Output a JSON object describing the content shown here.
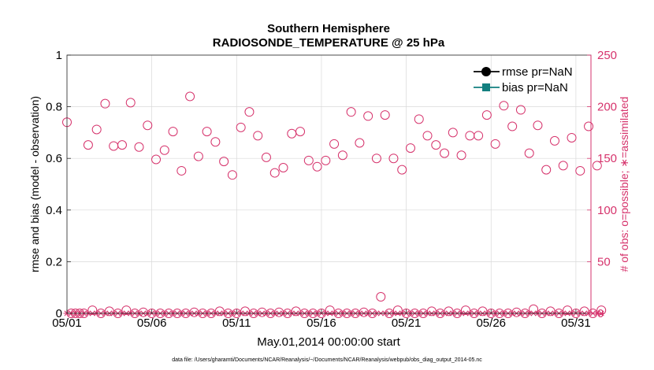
{
  "chart_data": {
    "type": "scatter",
    "title_line1": "Southern Hemisphere",
    "title_line2": "RADIOSONDE_TEMPERATURE @ 25 hPa",
    "xlabel": "May.01,2014 00:00:00 start",
    "ylabel_left": "rmse and bias (model - observation)",
    "ylabel_right": "# of obs: o=possible; ∗=assimilated",
    "footer": "data file: /Users/gharamti/Documents/NCAR/Reanalysis/~/Documents/NCAR/Reanalysis/webpub/obs_diag_output_2014-05.nc",
    "x_range": [
      1,
      32
    ],
    "x_ticks": [
      {
        "x": 1,
        "label": "05/01"
      },
      {
        "x": 6,
        "label": "05/06"
      },
      {
        "x": 11,
        "label": "05/11"
      },
      {
        "x": 16,
        "label": "05/16"
      },
      {
        "x": 21,
        "label": "05/21"
      },
      {
        "x": 26,
        "label": "05/26"
      },
      {
        "x": 31,
        "label": "05/31"
      }
    ],
    "ylim_left": [
      0,
      1
    ],
    "y_ticks_left": [
      "0",
      "0.2",
      "0.4",
      "0.6",
      "0.8",
      "1"
    ],
    "ylim_right": [
      0,
      250
    ],
    "y_ticks_right": [
      "0",
      "50",
      "100",
      "150",
      "200",
      "250"
    ],
    "grid": true,
    "legend_position": "top-right",
    "legend": [
      {
        "name": "rmse pr=NaN",
        "color": "#000000",
        "marker": "circle"
      },
      {
        "name": "bias pr=NaN",
        "color": "#138080",
        "marker": "square"
      }
    ],
    "colors": {
      "obs": "#d6336c",
      "rmse": "#000000",
      "bias": "#138080"
    },
    "obs_possible": [
      [
        1.0,
        185
      ],
      [
        1.25,
        0
      ],
      [
        1.5,
        0
      ],
      [
        1.75,
        0
      ],
      [
        2.0,
        0
      ],
      [
        2.25,
        163
      ],
      [
        2.5,
        3
      ],
      [
        2.75,
        178
      ],
      [
        3.0,
        0
      ],
      [
        3.25,
        203
      ],
      [
        3.5,
        2
      ],
      [
        3.75,
        162
      ],
      [
        4.0,
        0
      ],
      [
        4.25,
        163
      ],
      [
        4.5,
        3
      ],
      [
        4.75,
        204
      ],
      [
        5.0,
        0
      ],
      [
        5.25,
        161
      ],
      [
        5.5,
        1
      ],
      [
        5.75,
        182
      ],
      [
        6.0,
        0
      ],
      [
        6.25,
        149
      ],
      [
        6.5,
        0
      ],
      [
        6.75,
        158
      ],
      [
        7.0,
        0
      ],
      [
        7.25,
        176
      ],
      [
        7.5,
        0
      ],
      [
        7.75,
        138
      ],
      [
        8.0,
        0
      ],
      [
        8.25,
        210
      ],
      [
        8.5,
        1
      ],
      [
        8.75,
        152
      ],
      [
        9.0,
        0
      ],
      [
        9.25,
        176
      ],
      [
        9.5,
        0
      ],
      [
        9.75,
        166
      ],
      [
        10.0,
        2
      ],
      [
        10.25,
        147
      ],
      [
        10.5,
        0
      ],
      [
        10.75,
        134
      ],
      [
        11.0,
        0
      ],
      [
        11.25,
        180
      ],
      [
        11.5,
        2
      ],
      [
        11.75,
        195
      ],
      [
        12.0,
        0
      ],
      [
        12.25,
        172
      ],
      [
        12.5,
        1
      ],
      [
        12.75,
        151
      ],
      [
        13.0,
        0
      ],
      [
        13.25,
        136
      ],
      [
        13.5,
        1
      ],
      [
        13.75,
        141
      ],
      [
        14.0,
        0
      ],
      [
        14.25,
        174
      ],
      [
        14.5,
        2
      ],
      [
        14.75,
        176
      ],
      [
        15.0,
        0
      ],
      [
        15.25,
        148
      ],
      [
        15.5,
        0
      ],
      [
        15.75,
        142
      ],
      [
        16.0,
        0
      ],
      [
        16.25,
        148
      ],
      [
        16.5,
        3
      ],
      [
        16.75,
        164
      ],
      [
        17.0,
        0
      ],
      [
        17.25,
        153
      ],
      [
        17.5,
        0
      ],
      [
        17.75,
        195
      ],
      [
        18.0,
        0
      ],
      [
        18.25,
        165
      ],
      [
        18.5,
        1
      ],
      [
        18.75,
        191
      ],
      [
        19.0,
        0
      ],
      [
        19.25,
        150
      ],
      [
        19.5,
        16
      ],
      [
        19.75,
        192
      ],
      [
        20.0,
        0
      ],
      [
        20.25,
        150
      ],
      [
        20.5,
        3
      ],
      [
        20.75,
        139
      ],
      [
        21.0,
        0
      ],
      [
        21.25,
        160
      ],
      [
        21.5,
        0
      ],
      [
        21.75,
        188
      ],
      [
        22.0,
        0
      ],
      [
        22.25,
        172
      ],
      [
        22.5,
        2
      ],
      [
        22.75,
        163
      ],
      [
        23.0,
        0
      ],
      [
        23.25,
        155
      ],
      [
        23.5,
        2
      ],
      [
        23.75,
        175
      ],
      [
        24.0,
        0
      ],
      [
        24.25,
        153
      ],
      [
        24.5,
        3
      ],
      [
        24.75,
        172
      ],
      [
        25.0,
        0
      ],
      [
        25.25,
        172
      ],
      [
        25.5,
        2
      ],
      [
        25.75,
        192
      ],
      [
        26.0,
        0
      ],
      [
        26.25,
        164
      ],
      [
        26.5,
        0
      ],
      [
        26.75,
        201
      ],
      [
        27.0,
        0
      ],
      [
        27.25,
        181
      ],
      [
        27.5,
        1
      ],
      [
        27.75,
        197
      ],
      [
        28.0,
        0
      ],
      [
        28.25,
        155
      ],
      [
        28.5,
        4
      ],
      [
        28.75,
        182
      ],
      [
        29.0,
        0
      ],
      [
        29.25,
        139
      ],
      [
        29.5,
        2
      ],
      [
        29.75,
        167
      ],
      [
        30.0,
        0
      ],
      [
        30.25,
        143
      ],
      [
        30.5,
        3
      ],
      [
        30.75,
        170
      ],
      [
        31.0,
        0
      ],
      [
        31.25,
        138
      ],
      [
        31.5,
        2
      ],
      [
        31.75,
        181
      ],
      [
        32.0,
        0
      ],
      [
        32.25,
        143
      ],
      [
        32.5,
        3
      ]
    ],
    "obs_assimilated_x_start": 1,
    "obs_assimilated_x_end": 32.5,
    "obs_assimilated_x_step": 0.25,
    "obs_assimilated_value": 0
  }
}
